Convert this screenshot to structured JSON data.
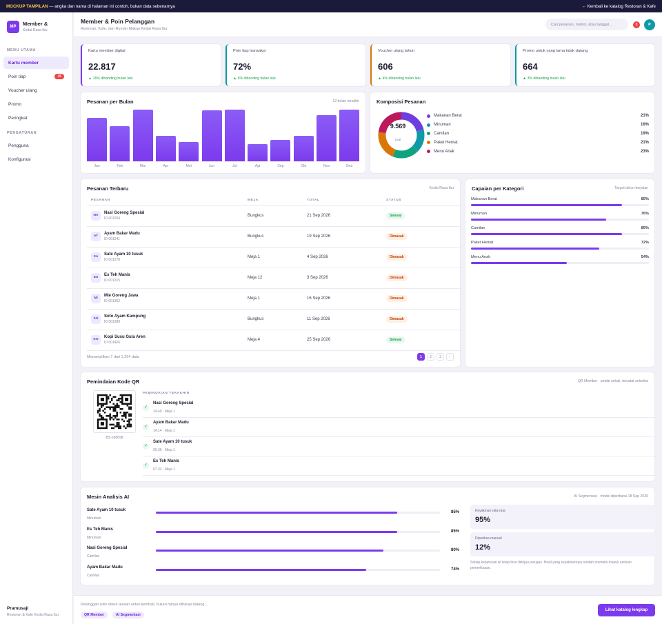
{
  "banner": {
    "tag": "MOCKUP TAMPILAN",
    "text": " — angka dan nama di halaman ini contoh, bukan data sebenarnya",
    "back": "← Kembali ke katalog Restoran & Kafe"
  },
  "brand": {
    "logo": "MP",
    "name": "Member &",
    "sub": "Kedai Rasa Ibu"
  },
  "nav": {
    "main_label": "MENU UTAMA",
    "main": [
      {
        "label": "Kartu member"
      },
      {
        "label": "Poin tiap",
        "badge": "16"
      },
      {
        "label": "Voucher ulang"
      },
      {
        "label": "Promo"
      },
      {
        "label": "Peringkat"
      }
    ],
    "settings_label": "PENGATURAN",
    "settings": [
      {
        "label": "Pengguna"
      },
      {
        "label": "Konfigurasi"
      }
    ]
  },
  "sidebar_footer": {
    "name": "Pramusaji",
    "sub": "Restoran & Kafe Kedai Rasa Ibu"
  },
  "header": {
    "title": "Member & Poin Pelanggan",
    "subtitle": "Restoran, Kafe, dan Rumah Makan Kedai Rasa Ibu",
    "search_placeholder": "Cari pesanan, nomor, atau tanggal…",
    "notif": "3",
    "avatar": "P"
  },
  "stats": [
    {
      "label": "Kartu member digital",
      "value": "22.817",
      "change": "▲ 16% dibanding bulan lalu",
      "color": "#7c3aed"
    },
    {
      "label": "Poin tiap transaksi",
      "value": "72%",
      "change": "▲ 6% dibanding bulan lalu",
      "color": "#0e9aa7"
    },
    {
      "label": "Voucher ulang tahun",
      "value": "606",
      "change": "▲ 4% dibanding bulan lalu",
      "color": "#d97706"
    },
    {
      "label": "Promo untuk yang lama tidak datang",
      "value": "664",
      "change": "▲ 3% dibanding bulan lalu",
      "color": "#0e9aa7"
    }
  ],
  "orders_chart": {
    "title": "Pesanan per Bulan",
    "subtitle": "12 bulan terakhir",
    "chart_data": {
      "type": "bar",
      "categories": [
        "Jan",
        "Feb",
        "Mar",
        "Apr",
        "Mei",
        "Jun",
        "Jul",
        "Agt",
        "Sep",
        "Okt",
        "Nov",
        "Des"
      ],
      "values": [
        84,
        68,
        100,
        49,
        38,
        99,
        100,
        33,
        42,
        49,
        89,
        100
      ],
      "ylim": [
        0,
        100
      ]
    }
  },
  "composition": {
    "title": "Komposisi Pesanan",
    "total": "9.569",
    "total_label": "total",
    "chart_data": {
      "type": "pie",
      "labels": [
        "Makanan Berat",
        "Minuman",
        "Camilan",
        "Paket Hemat",
        "Menu Anak"
      ],
      "values": [
        21,
        16,
        19,
        21,
        23
      ],
      "colors": [
        "#6d3fe0",
        "#0e9aa7",
        "#10a37f",
        "#d97706",
        "#be185d"
      ]
    }
  },
  "recent": {
    "title": "Pesanan Terbaru",
    "subtitle": "Kedai Rasa Ibu",
    "columns": [
      "PESANAN",
      "MEJA",
      "TOTAL",
      "STATUS"
    ],
    "rows": [
      {
        "initials": "NA",
        "name": "Nasi Goreng Spesial",
        "id": "ID 001204",
        "table": "Bungkus",
        "date": "21 Sep 2026",
        "status": "Selesai",
        "ok": true
      },
      {
        "initials": "AY",
        "name": "Ayam Bakar Madu",
        "id": "ID 001241",
        "table": "Bungkus",
        "date": "19 Sep 2026",
        "status": "Dimasak",
        "ok": false
      },
      {
        "initials": "SA",
        "name": "Sate Ayam 10 tusuk",
        "id": "ID 001278",
        "table": "Meja 1",
        "date": "4 Sep 2026",
        "status": "Dimasak",
        "ok": false
      },
      {
        "initials": "ES",
        "name": "Es Teh Manis",
        "id": "ID 001315",
        "table": "Meja 12",
        "date": "3 Sep 2026",
        "status": "Dimasak",
        "ok": false
      },
      {
        "initials": "MI",
        "name": "Mie Goreng Jawa",
        "id": "ID 001352",
        "table": "Meja 1",
        "date": "16 Sep 2026",
        "status": "Dimasak",
        "ok": false
      },
      {
        "initials": "SO",
        "name": "Soto Ayam Kampung",
        "id": "ID 001389",
        "table": "Bungkus",
        "date": "11 Sep 2026",
        "status": "Dimasak",
        "ok": false
      },
      {
        "initials": "KO",
        "name": "Kopi Susu Gula Aren",
        "id": "ID 001426",
        "table": "Meja 4",
        "date": "25 Sep 2026",
        "status": "Selesai",
        "ok": true
      }
    ],
    "footer": "Menampilkan 7 dari 1.294 data",
    "pages": [
      "1",
      "2",
      "3",
      "›"
    ]
  },
  "achievement": {
    "title": "Capaian per Kategori",
    "subtitle": "Target tahun berjalan",
    "items": [
      {
        "label": "Makanan Berat",
        "value": "85%",
        "pct": 85
      },
      {
        "label": "Minuman",
        "value": "76%",
        "pct": 76
      },
      {
        "label": "Camilan",
        "value": "85%",
        "pct": 85
      },
      {
        "label": "Paket Hemat",
        "value": "72%",
        "pct": 72
      },
      {
        "label": "Menu Anak",
        "value": "54%",
        "pct": 54
      }
    ]
  },
  "qr": {
    "title": "Pemindaian Kode QR",
    "subtitle": "QR Member · pindai sekali, tercatat seketika",
    "code_id": "BS-268698",
    "recent_label": "PEMINDAIAN TERAKHIR",
    "scans": [
      {
        "name": "Nasi Goreng Spesial",
        "meta": "14.49 · Meja 1"
      },
      {
        "name": "Ayam Bakar Madu",
        "meta": "14.14 · Meja 1"
      },
      {
        "name": "Sate Ayam 10 tusuk",
        "meta": "09.36 · Meja 1"
      },
      {
        "name": "Es Teh Manis",
        "meta": "07.33 · Meja 1"
      }
    ]
  },
  "ai": {
    "title": "Mesin Analisis AI",
    "subtitle": "AI Segmentasi · model diperbarui 18 Sep 2026",
    "rows": [
      {
        "name": "Sate Ayam 10 tusuk",
        "cat": "Minuman",
        "value": "85%",
        "pct": 85
      },
      {
        "name": "Es Teh Manis",
        "cat": "Minuman",
        "value": "85%",
        "pct": 85
      },
      {
        "name": "Nasi Goreng Spesial",
        "cat": "Camilan",
        "value": "80%",
        "pct": 80
      },
      {
        "name": "Ayam Bakar Madu",
        "cat": "Camilan",
        "value": "74%",
        "pct": 74
      }
    ],
    "kpis": [
      {
        "label": "Keyakinan rata-rata",
        "value": "95%"
      },
      {
        "label": "Diperiksa manual",
        "value": "12%"
      }
    ],
    "note": "Setiap keputusan AI tetap bisa ditinjau petugas. Hasil yang keyakinannya rendah otomatis masuk antrean pemeriksaan."
  },
  "footer": {
    "text": "Pelanggan rutin diberi alasan untuk kembali, bukan hanya diharap datang…",
    "tags": [
      "QR Member",
      "AI Segmentasi"
    ],
    "cta": "Lihat katalog lengkap"
  }
}
